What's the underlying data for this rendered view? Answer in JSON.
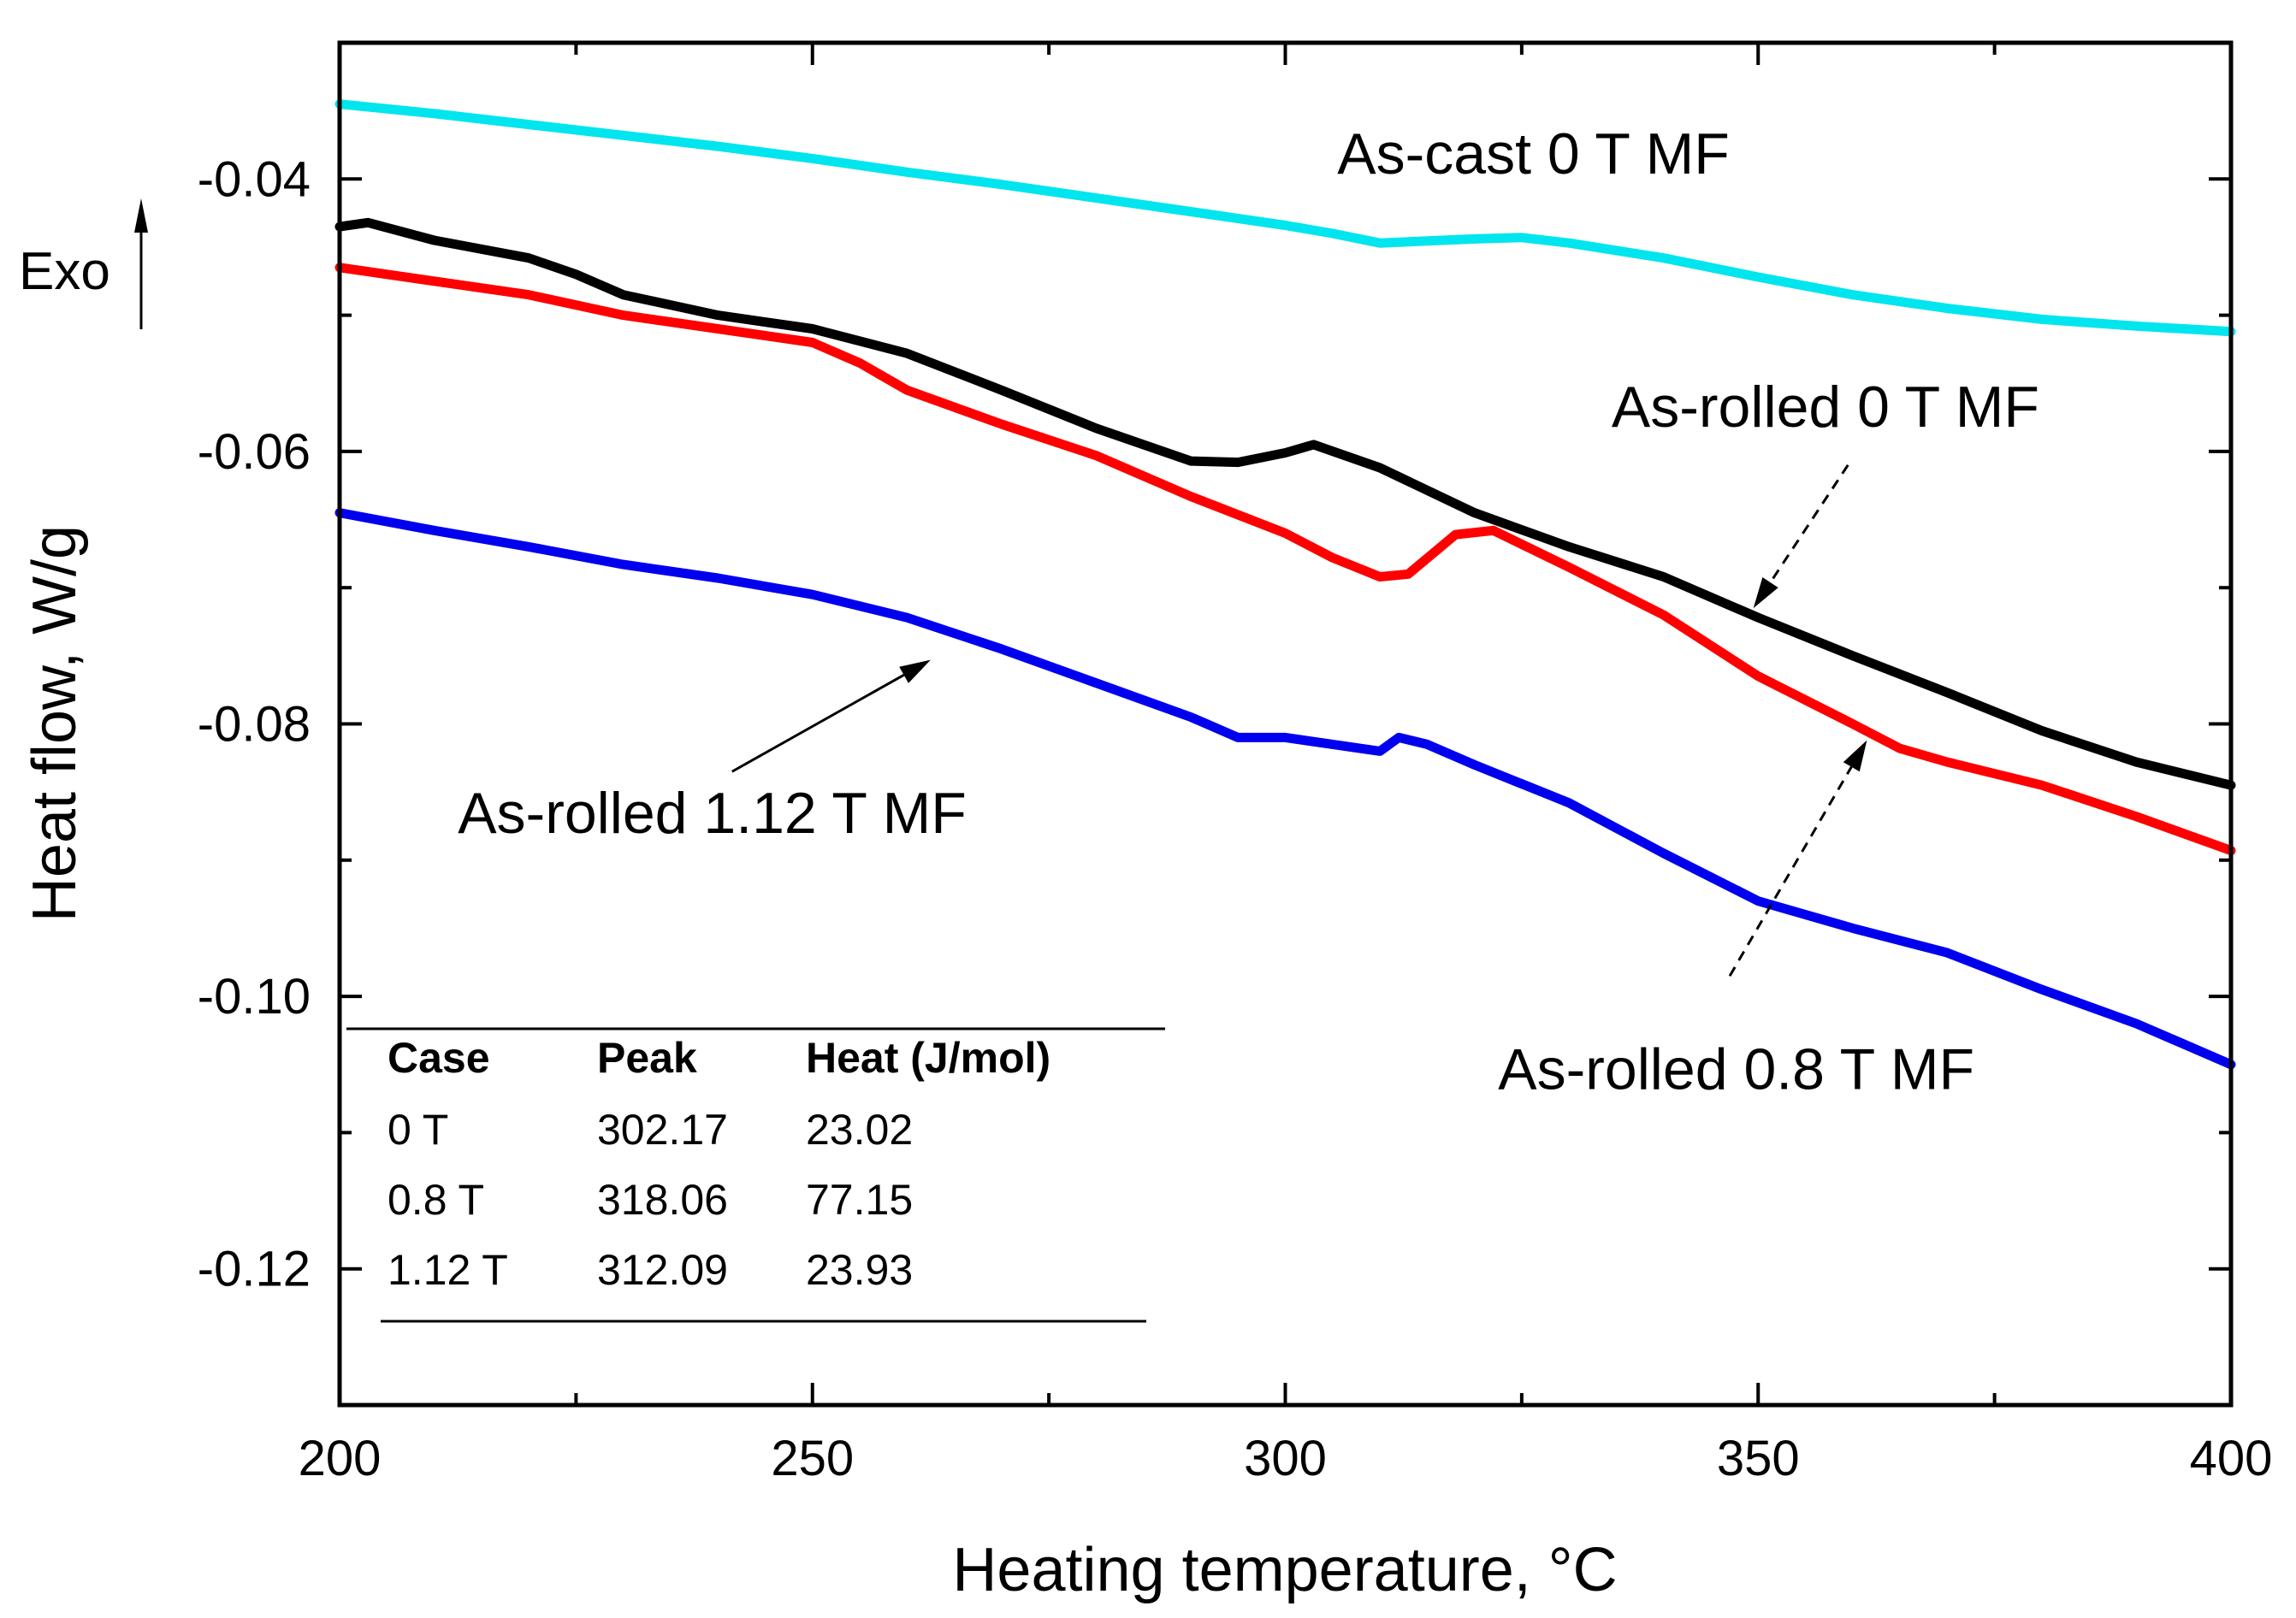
{
  "chart_data": {
    "type": "line",
    "title": "",
    "xlabel": "Heating temperature, °C",
    "ylabel": "Heat flow, W/g",
    "xlim": [
      200,
      400
    ],
    "ylim": [
      -0.13,
      -0.03
    ],
    "x_major_ticks": [
      200,
      250,
      300,
      350,
      400
    ],
    "x_tick_labels": [
      "200",
      "250",
      "300",
      "350",
      "400"
    ],
    "x_minor_ticks": [
      225,
      275,
      325,
      375
    ],
    "y_major_ticks": [
      -0.04,
      -0.06,
      -0.08,
      -0.1,
      -0.12
    ],
    "y_tick_labels": [
      "-0.04",
      "-0.06",
      "-0.08",
      "-0.10",
      "-0.12"
    ],
    "y_minor_ticks": [
      -0.03,
      -0.05,
      -0.07,
      -0.09,
      -0.11,
      -0.13
    ],
    "exo_label": "Exo",
    "series": [
      {
        "name": "As-cast 0 T MF",
        "color": "#00e5ee",
        "x": [
          200,
          210,
          220,
          230,
          240,
          250,
          260,
          270,
          280,
          290,
          300,
          305,
          310,
          320,
          325,
          330,
          340,
          350,
          360,
          370,
          380,
          390,
          400
        ],
        "y": [
          -0.0345,
          -0.0352,
          -0.036,
          -0.0368,
          -0.0376,
          -0.0385,
          -0.0395,
          -0.0404,
          -0.0414,
          -0.0424,
          -0.0434,
          -0.044,
          -0.0447,
          -0.0444,
          -0.0443,
          -0.0447,
          -0.0458,
          -0.0472,
          -0.0485,
          -0.0495,
          -0.0503,
          -0.0508,
          -0.0512
        ]
      },
      {
        "name": "As-rolled 0 T MF",
        "color": "#000000",
        "x": [
          200,
          203,
          210,
          220,
          225,
          230,
          240,
          250,
          260,
          270,
          280,
          290,
          295,
          300,
          303,
          310,
          320,
          330,
          340,
          350,
          360,
          370,
          380,
          390,
          400
        ],
        "y": [
          -0.0435,
          -0.0432,
          -0.0445,
          -0.0458,
          -0.047,
          -0.0485,
          -0.05,
          -0.051,
          -0.0528,
          -0.0555,
          -0.0583,
          -0.0607,
          -0.0608,
          -0.0601,
          -0.0595,
          -0.0612,
          -0.0645,
          -0.067,
          -0.0692,
          -0.0722,
          -0.075,
          -0.0777,
          -0.0805,
          -0.0828,
          -0.0845
        ]
      },
      {
        "name": "As-rolled 0.8 T MF",
        "color": "#ff0000",
        "x": [
          200,
          210,
          220,
          230,
          240,
          250,
          255,
          260,
          270,
          280,
          290,
          300,
          305,
          310,
          313,
          318,
          322,
          330,
          340,
          350,
          360,
          365,
          370,
          380,
          390,
          400
        ],
        "y": [
          -0.0465,
          -0.0475,
          -0.0485,
          -0.05,
          -0.051,
          -0.052,
          -0.0535,
          -0.0555,
          -0.058,
          -0.0603,
          -0.0633,
          -0.066,
          -0.0678,
          -0.0692,
          -0.069,
          -0.0661,
          -0.0658,
          -0.0685,
          -0.072,
          -0.0765,
          -0.08,
          -0.0818,
          -0.0828,
          -0.0845,
          -0.0868,
          -0.0893
        ]
      },
      {
        "name": "As-rolled 1.12 T MF",
        "color": "#0000ee",
        "x": [
          200,
          210,
          220,
          230,
          240,
          250,
          260,
          270,
          280,
          290,
          295,
          300,
          305,
          310,
          312,
          315,
          320,
          330,
          340,
          350,
          360,
          370,
          380,
          390,
          400
        ],
        "y": [
          -0.0645,
          -0.0658,
          -0.067,
          -0.0683,
          -0.0693,
          -0.0705,
          -0.0722,
          -0.0745,
          -0.077,
          -0.0795,
          -0.081,
          -0.081,
          -0.0815,
          -0.082,
          -0.081,
          -0.0815,
          -0.083,
          -0.0858,
          -0.0895,
          -0.093,
          -0.095,
          -0.0968,
          -0.0995,
          -0.102,
          -0.105
        ]
      }
    ],
    "annotations": [
      {
        "id": "label-as-cast",
        "text": "As-cast 0 T MF",
        "x": 305.5,
        "y": -0.0396
      },
      {
        "id": "label-rolled-0",
        "text": "As-rolled 0 T MF",
        "x": 334.5,
        "y": -0.0582
      },
      {
        "id": "label-rolled-112",
        "text": "As-rolled 1.12 T MF",
        "x": 212.5,
        "y": -0.088
      },
      {
        "id": "label-rolled-08",
        "text": "As-rolled 0.8 T MF",
        "x": 322.5,
        "y": -0.1068
      }
    ],
    "arrows": [
      {
        "id": "arrow-rolled-0",
        "dashed": true,
        "from": [
          359.5,
          -0.061
        ],
        "to": [
          349.5,
          -0.0715
        ]
      },
      {
        "id": "arrow-rolled-112",
        "dashed": false,
        "from": [
          241.5,
          -0.0835
        ],
        "to": [
          262.5,
          -0.0753
        ]
      },
      {
        "id": "arrow-rolled-08",
        "dashed": true,
        "from": [
          347,
          -0.0985
        ],
        "to": [
          361.5,
          -0.0812
        ]
      }
    ],
    "table": {
      "headers": [
        "Case",
        "Peak",
        "Heat (J/mol)"
      ],
      "rows": [
        [
          "0 T",
          "302.17",
          "23.02"
        ],
        [
          "0.8 T",
          "318.06",
          "77.15"
        ],
        [
          "1.12 T",
          "312.09",
          "23.93"
        ]
      ]
    }
  }
}
